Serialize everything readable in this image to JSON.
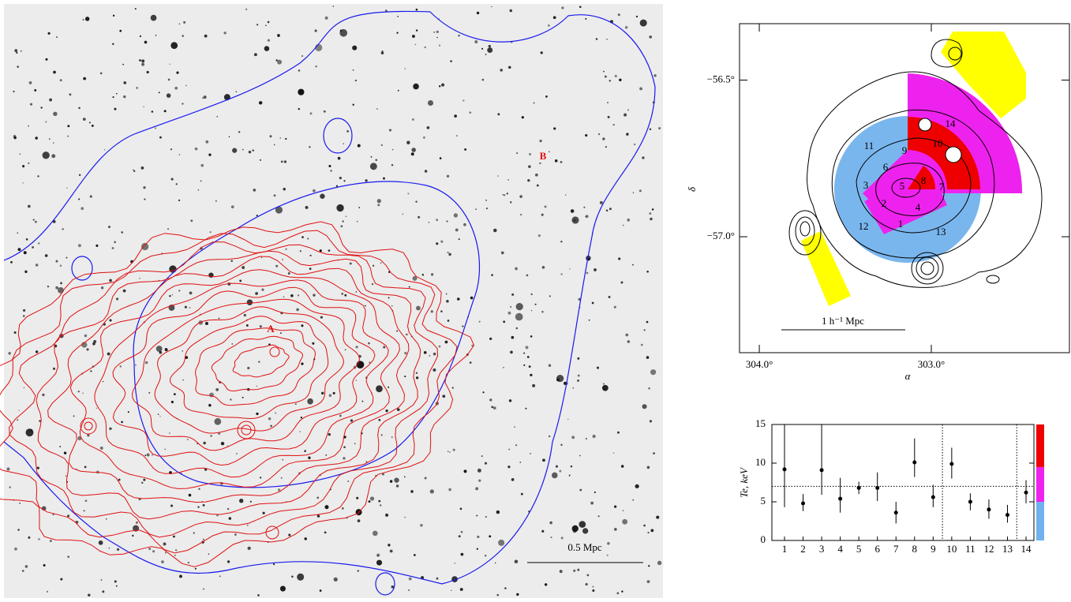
{
  "image_panel": {
    "labels": [
      "A",
      "B"
    ],
    "scale_bar": "0.5 Mpc"
  },
  "chart_data": [
    {
      "type": "map",
      "xlabel": "α",
      "ylabel": "δ",
      "xlim": [
        304.115,
        302.197
      ],
      "ylim": [
        -57.37,
        -56.32
      ],
      "xticks": [
        {
          "value": 304,
          "label": "304.0°"
        },
        {
          "value": 303,
          "label": "303.0°"
        }
      ],
      "yticks": [
        {
          "value": -56.5,
          "label": "−56.5°"
        },
        {
          "value": -57,
          "label": "−57.0°"
        }
      ],
      "region_labels": [
        "1",
        "2",
        "3",
        "4",
        "5",
        "6",
        "7",
        "8",
        "9",
        "10",
        "11",
        "12",
        "13",
        "14"
      ],
      "scale_bar": "1 h⁻¹ Mpc"
    },
    {
      "type": "errorbar",
      "ylabel": "Te, keV",
      "categories": [
        "1",
        "2",
        "3",
        "4",
        "5",
        "6",
        "7",
        "8",
        "9",
        "10",
        "11",
        "12",
        "13",
        "14"
      ],
      "values": [
        9.2,
        4.8,
        9.1,
        5.4,
        6.8,
        6.8,
        3.6,
        10.1,
        5.6,
        9.9,
        5.0,
        4.0,
        3.3,
        6.2
      ],
      "lower": [
        4.3,
        3.8,
        5.9,
        3.6,
        6.0,
        5.1,
        2.2,
        8.2,
        4.3,
        8.0,
        3.9,
        2.8,
        2.3,
        4.8
      ],
      "upper": [
        15,
        6.0,
        15,
        8.1,
        7.6,
        8.8,
        5.0,
        13.2,
        7.2,
        12.0,
        6.1,
        5.3,
        4.6,
        7.8
      ],
      "color": "#000000",
      "ylim": [
        0,
        15
      ],
      "yticks": [
        0,
        5,
        10,
        15
      ],
      "hline": 7,
      "vlines": [
        9.5,
        13.5
      ],
      "color_bands": [
        {
          "from": 0,
          "to": 5,
          "color": "#6fb2ee"
        },
        {
          "from": 5,
          "to": 9.5,
          "color": "#ee22ee"
        },
        {
          "from": 9.5,
          "to": 15,
          "color": "#ee0000"
        }
      ]
    }
  ]
}
